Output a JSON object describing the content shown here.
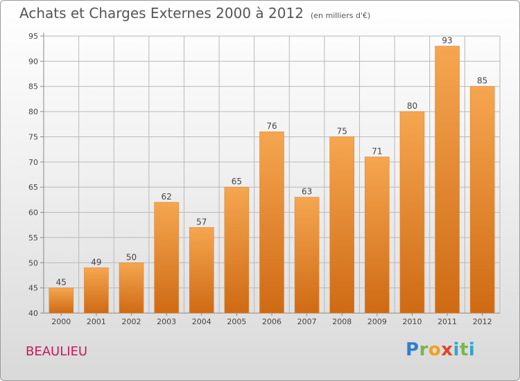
{
  "title": "Achats et Charges Externes 2000 à 2012",
  "subtitle": "(en milliers d'€)",
  "commune": "BEAULIEU",
  "logo_text": "Proxiti",
  "colors": {
    "bar_light": "#f6a650",
    "bar_dark": "#cf6a14",
    "grid": "#b8b8b8",
    "axis_text": "#444444",
    "commune": "#c8185a"
  },
  "chart_data": {
    "type": "bar",
    "categories": [
      "2000",
      "2001",
      "2002",
      "2003",
      "2004",
      "2005",
      "2006",
      "2007",
      "2008",
      "2009",
      "2010",
      "2011",
      "2012"
    ],
    "values": [
      45,
      49,
      50,
      62,
      57,
      65,
      76,
      63,
      75,
      71,
      80,
      93,
      85
    ],
    "ylim": [
      40,
      95
    ],
    "yticks": [
      40,
      45,
      50,
      55,
      60,
      65,
      70,
      75,
      80,
      85,
      90,
      95
    ],
    "grid": true,
    "title": "Achats et Charges Externes 2000 à 2012",
    "xlabel": "",
    "ylabel": ""
  }
}
